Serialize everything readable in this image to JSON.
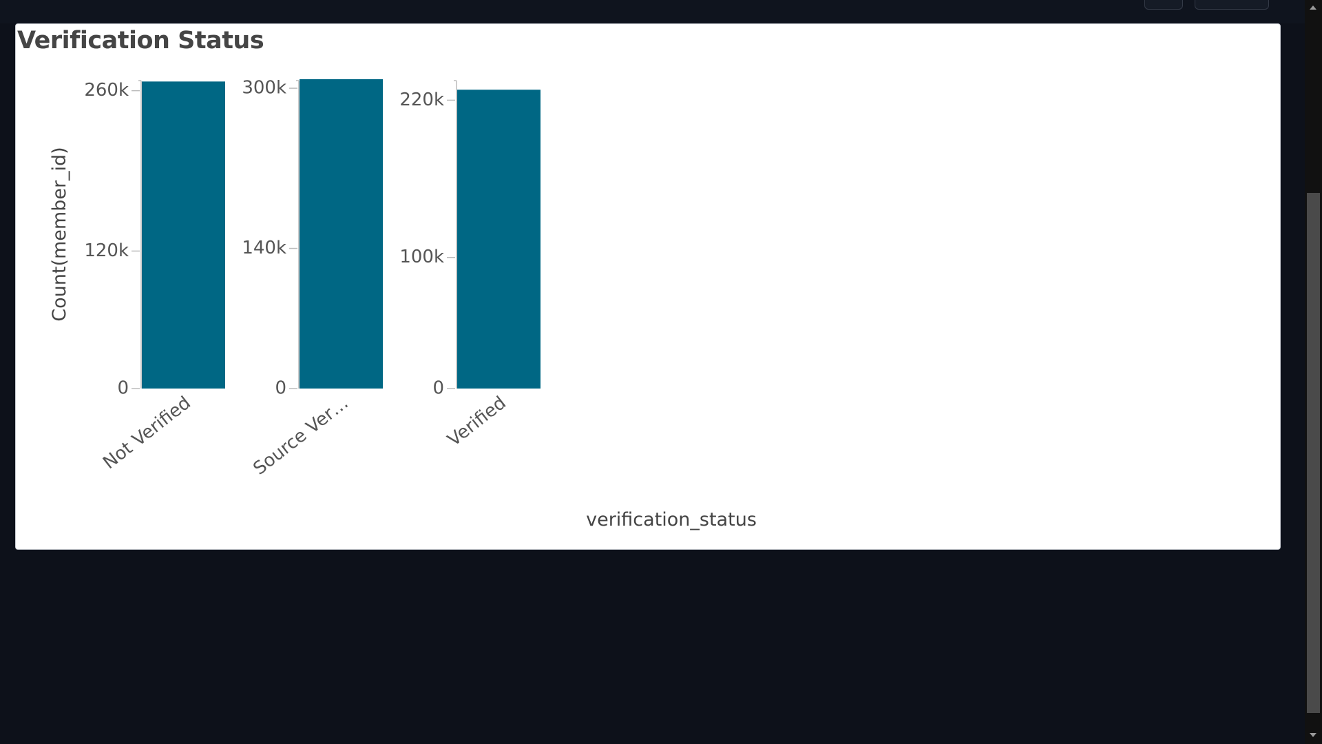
{
  "panel": {
    "title": "Verification Status"
  },
  "chart_data": {
    "type": "bar",
    "title": "Verification Status",
    "xlabel": "verification_status",
    "ylabel": "Count(member_id)",
    "bar_color": "#006784",
    "facets": [
      {
        "category": "Not Verified",
        "tick_label": "Not Verified",
        "value": 268000,
        "ylim": [
          0,
          270000
        ],
        "yticks": [
          0,
          120000,
          260000
        ],
        "ytick_labels": [
          "0",
          "120k",
          "260k"
        ]
      },
      {
        "category": "Source Verified",
        "tick_label": "Source Ver…",
        "value": 309000,
        "ylim": [
          0,
          309000
        ],
        "yticks": [
          0,
          140000,
          300000
        ],
        "ytick_labels": [
          "0",
          "140k",
          "300k"
        ]
      },
      {
        "category": "Verified",
        "tick_label": "Verified",
        "value": 228000,
        "ylim": [
          0,
          236000
        ],
        "yticks": [
          0,
          100000,
          220000
        ],
        "ytick_labels": [
          "0",
          "100k",
          "220k"
        ]
      }
    ]
  },
  "colors": {
    "page_background": "#0d111a",
    "panel_background": "#ffffff",
    "bar": "#006784",
    "text": "#454545",
    "scrollbar_track": "#111111",
    "scrollbar_thumb": "#4a4a4a"
  }
}
